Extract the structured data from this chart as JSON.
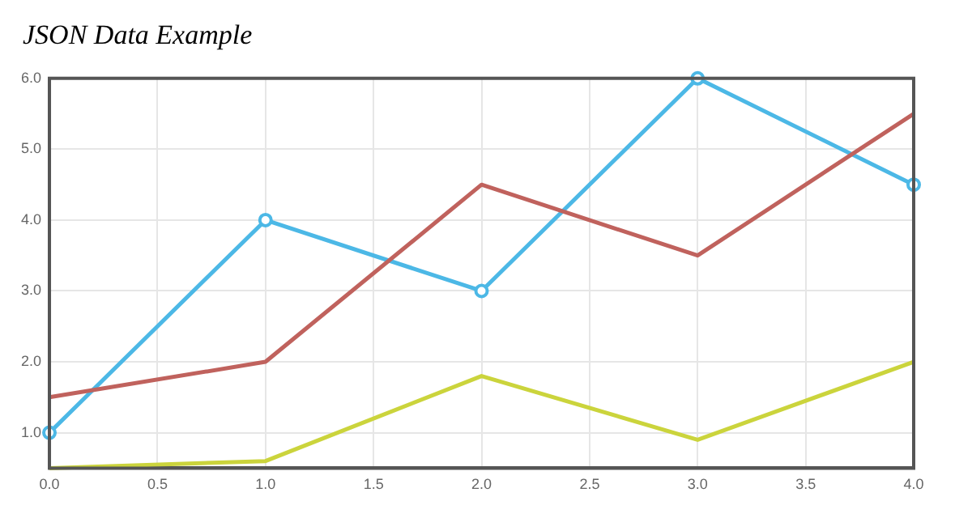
{
  "chart_data": {
    "type": "line",
    "title": "JSON Data Example",
    "x": [
      0,
      1,
      2,
      3,
      4
    ],
    "series": [
      {
        "color": "#c0625d",
        "values": [
          1.5,
          2.0,
          4.5,
          3.5,
          5.5
        ],
        "marker": "none"
      },
      {
        "color": "#4cb8e6",
        "values": [
          1.0,
          4.0,
          3.0,
          6.0,
          4.5
        ],
        "marker": "circle"
      },
      {
        "color": "#cbd43c",
        "values": [
          0.5,
          0.6,
          1.8,
          0.9,
          2.0
        ],
        "marker": "none"
      }
    ],
    "xlim": [
      0,
      4
    ],
    "xticks": [
      {
        "value": 0,
        "label": "0.0"
      },
      {
        "value": 0.5,
        "label": "0.5"
      },
      {
        "value": 1,
        "label": "1.0"
      },
      {
        "value": 1.5,
        "label": "1.5"
      },
      {
        "value": 2,
        "label": "2.0"
      },
      {
        "value": 2.5,
        "label": "2.5"
      },
      {
        "value": 3,
        "label": "3.0"
      },
      {
        "value": 3.5,
        "label": "3.5"
      },
      {
        "value": 4,
        "label": "4.0"
      }
    ],
    "ylim": [
      0.5,
      6
    ],
    "yticks": [
      {
        "value": 1,
        "label": "1.0"
      },
      {
        "value": 2,
        "label": "2.0"
      },
      {
        "value": 3,
        "label": "3.0"
      },
      {
        "value": 4,
        "label": "4.0"
      },
      {
        "value": 5,
        "label": "5.0"
      },
      {
        "value": 6,
        "label": "6.0"
      }
    ],
    "grid": true,
    "legend": false,
    "line_style": "solid"
  }
}
